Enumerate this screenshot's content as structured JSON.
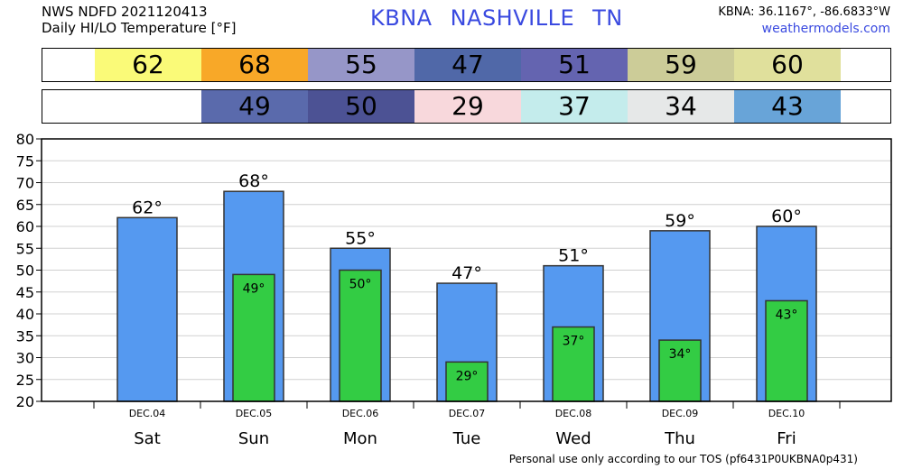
{
  "header": {
    "line1": "NWS NDFD 2021120413",
    "line2": "Daily HI/LO Temperature [°F]",
    "station_id": "KBNA",
    "station_name": "NASHVILLE",
    "state": "TN",
    "coords": "KBNA: 36.1167°, -86.6833°W",
    "site": "weathermodels.com"
  },
  "hi_strip": [
    {
      "text": "62",
      "color": "#fafa78"
    },
    {
      "text": "68",
      "color": "#f8a828"
    },
    {
      "text": "55",
      "color": "#9696c8"
    },
    {
      "text": "47",
      "color": "#5068a8"
    },
    {
      "text": "51",
      "color": "#6464b0"
    },
    {
      "text": "59",
      "color": "#cccc98"
    },
    {
      "text": "60",
      "color": "#e0e09c"
    }
  ],
  "lo_strip": [
    {
      "text": "",
      "color": ""
    },
    {
      "text": "49",
      "color": "#5a6aac"
    },
    {
      "text": "50",
      "color": "#4c5294"
    },
    {
      "text": "29",
      "color": "#f8d8dc"
    },
    {
      "text": "37",
      "color": "#c4ecec"
    },
    {
      "text": "34",
      "color": "#e6e8e8"
    },
    {
      "text": "43",
      "color": "#68a4d8"
    }
  ],
  "chart_data": {
    "type": "bar",
    "title": "Daily HI/LO Temperature [°F]",
    "categories": [
      "Sat",
      "Sun",
      "Mon",
      "Tue",
      "Wed",
      "Thu",
      "Fri"
    ],
    "dates": [
      "DEC.04",
      "DEC.05",
      "DEC.06",
      "DEC.07",
      "DEC.08",
      "DEC.09",
      "DEC.10"
    ],
    "series": [
      {
        "name": "HI",
        "values": [
          62,
          68,
          55,
          47,
          51,
          59,
          60
        ],
        "color": "#5599f0"
      },
      {
        "name": "LO",
        "values": [
          null,
          49,
          50,
          29,
          37,
          34,
          43
        ],
        "color": "#33cc44"
      }
    ],
    "ylim": [
      20,
      80
    ],
    "yticks": [
      20,
      25,
      30,
      35,
      40,
      45,
      50,
      55,
      60,
      65,
      70,
      75,
      80
    ],
    "grid": true,
    "degree_suffix": "°"
  },
  "footer": "Personal use only according to our TOS (pf6431P0UKBNA0p431)"
}
